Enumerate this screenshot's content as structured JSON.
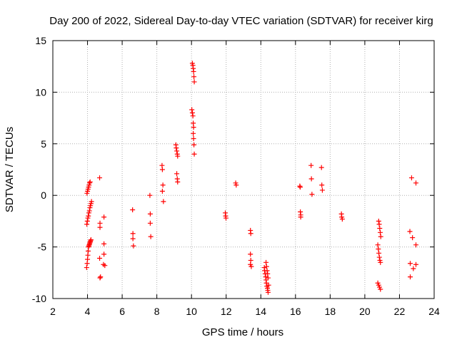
{
  "chart_data": {
    "type": "scatter",
    "title": "Day 200 of 2022, Sidereal Day-to-day VTEC variation (SDTVAR) for receiver kirg",
    "xlabel": "GPS time / hours",
    "ylabel": "SDTVAR / TECUs",
    "xlim": [
      2,
      24
    ],
    "ylim": [
      -10,
      15
    ],
    "xticks": [
      2,
      4,
      6,
      8,
      10,
      12,
      14,
      16,
      18,
      20,
      22,
      24
    ],
    "yticks": [
      -10,
      -5,
      0,
      5,
      10,
      15
    ],
    "xtick_labels": [
      "2",
      "4",
      "6",
      "8",
      "10",
      "12",
      "14",
      "16",
      "18",
      "20",
      "22",
      "24"
    ],
    "ytick_labels": [
      "-10",
      "-5",
      "0",
      "5",
      "10",
      "15"
    ],
    "grid": true,
    "marker": "+",
    "marker_color": "#ff0000",
    "series": [
      {
        "name": "SDTVAR",
        "points": [
          [
            3.95,
            -7.0
          ],
          [
            3.98,
            -6.6
          ],
          [
            4.0,
            -6.2
          ],
          [
            4.02,
            -5.8
          ],
          [
            4.04,
            -5.4
          ],
          [
            4.06,
            -5.0
          ],
          [
            4.08,
            -4.9
          ],
          [
            4.1,
            -4.8
          ],
          [
            4.12,
            -4.7
          ],
          [
            4.14,
            -4.6
          ],
          [
            4.16,
            -4.5
          ],
          [
            4.18,
            -4.4
          ],
          [
            4.2,
            -4.3
          ],
          [
            3.96,
            -2.8
          ],
          [
            3.99,
            -2.5
          ],
          [
            4.02,
            -2.2
          ],
          [
            4.05,
            -2.0
          ],
          [
            4.08,
            -1.7
          ],
          [
            4.11,
            -1.5
          ],
          [
            4.14,
            -1.2
          ],
          [
            4.17,
            -1.0
          ],
          [
            4.2,
            -0.8
          ],
          [
            4.23,
            -0.6
          ],
          [
            3.97,
            0.2
          ],
          [
            4.0,
            0.4
          ],
          [
            4.03,
            0.6
          ],
          [
            4.06,
            0.8
          ],
          [
            4.09,
            1.0
          ],
          [
            4.12,
            1.2
          ],
          [
            4.15,
            1.3
          ],
          [
            4.7,
            1.7
          ],
          [
            4.72,
            -2.7
          ],
          [
            4.72,
            -3.1
          ],
          [
            4.7,
            -6.1
          ],
          [
            4.72,
            -8.0
          ],
          [
            4.75,
            -7.9
          ],
          [
            4.95,
            -2.1
          ],
          [
            4.95,
            -4.7
          ],
          [
            4.95,
            -5.7
          ],
          [
            5.0,
            -6.8
          ],
          [
            4.92,
            -6.7
          ],
          [
            6.6,
            -1.4
          ],
          [
            6.62,
            -3.7
          ],
          [
            6.62,
            -4.2
          ],
          [
            6.65,
            -4.9
          ],
          [
            7.6,
            0.0
          ],
          [
            7.62,
            -1.8
          ],
          [
            7.62,
            -2.7
          ],
          [
            7.65,
            -4.0
          ],
          [
            8.3,
            2.9
          ],
          [
            8.32,
            2.5
          ],
          [
            8.35,
            1.0
          ],
          [
            8.32,
            0.4
          ],
          [
            8.38,
            -0.6
          ],
          [
            9.1,
            4.9
          ],
          [
            9.12,
            4.6
          ],
          [
            9.15,
            4.3
          ],
          [
            9.18,
            4.0
          ],
          [
            9.2,
            3.8
          ],
          [
            9.15,
            2.1
          ],
          [
            9.18,
            1.6
          ],
          [
            9.2,
            1.3
          ],
          [
            10.05,
            12.8
          ],
          [
            10.08,
            12.6
          ],
          [
            10.1,
            12.3
          ],
          [
            10.12,
            12.0
          ],
          [
            10.14,
            11.5
          ],
          [
            10.16,
            11.0
          ],
          [
            10.02,
            8.3
          ],
          [
            10.05,
            8.0
          ],
          [
            10.08,
            7.7
          ],
          [
            10.1,
            7.0
          ],
          [
            10.12,
            6.6
          ],
          [
            10.1,
            6.0
          ],
          [
            10.12,
            5.5
          ],
          [
            10.14,
            4.9
          ],
          [
            10.16,
            4.0
          ],
          [
            11.95,
            -1.7
          ],
          [
            11.97,
            -2.0
          ],
          [
            11.99,
            -2.2
          ],
          [
            12.55,
            1.2
          ],
          [
            12.58,
            1.0
          ],
          [
            13.4,
            -3.4
          ],
          [
            13.42,
            -3.7
          ],
          [
            13.4,
            -5.7
          ],
          [
            13.42,
            -6.3
          ],
          [
            13.4,
            -6.7
          ],
          [
            13.45,
            -6.9
          ],
          [
            14.2,
            -7.0
          ],
          [
            14.22,
            -7.3
          ],
          [
            14.25,
            -7.6
          ],
          [
            14.28,
            -7.9
          ],
          [
            14.3,
            -8.2
          ],
          [
            14.32,
            -8.5
          ],
          [
            14.35,
            -8.8
          ],
          [
            14.38,
            -9.0
          ],
          [
            14.4,
            -9.2
          ],
          [
            14.42,
            -9.4
          ],
          [
            14.3,
            -6.5
          ],
          [
            14.33,
            -6.9
          ],
          [
            14.36,
            -7.3
          ],
          [
            14.39,
            -7.6
          ],
          [
            14.42,
            -8.0
          ],
          [
            14.45,
            -8.7
          ],
          [
            16.25,
            0.9
          ],
          [
            16.27,
            0.8
          ],
          [
            16.28,
            -1.6
          ],
          [
            16.3,
            -1.9
          ],
          [
            16.3,
            -2.1
          ],
          [
            16.9,
            2.9
          ],
          [
            16.92,
            1.6
          ],
          [
            16.95,
            0.1
          ],
          [
            17.5,
            2.7
          ],
          [
            17.52,
            1.0
          ],
          [
            17.55,
            0.5
          ],
          [
            18.65,
            -1.8
          ],
          [
            18.67,
            -2.1
          ],
          [
            18.7,
            -2.3
          ],
          [
            20.8,
            -2.5
          ],
          [
            20.83,
            -2.8
          ],
          [
            20.86,
            -3.2
          ],
          [
            20.89,
            -3.6
          ],
          [
            20.92,
            -4.0
          ],
          [
            20.75,
            -4.8
          ],
          [
            20.78,
            -5.2
          ],
          [
            20.81,
            -5.6
          ],
          [
            20.84,
            -6.0
          ],
          [
            20.87,
            -6.3
          ],
          [
            20.9,
            -6.5
          ],
          [
            20.75,
            -8.5
          ],
          [
            20.8,
            -8.7
          ],
          [
            20.85,
            -8.9
          ],
          [
            20.9,
            -9.1
          ],
          [
            22.6,
            -3.5
          ],
          [
            22.62,
            -6.6
          ],
          [
            22.62,
            -7.9
          ],
          [
            22.7,
            1.7
          ],
          [
            22.75,
            -4.1
          ],
          [
            22.8,
            -7.1
          ],
          [
            22.95,
            1.2
          ],
          [
            22.95,
            -4.8
          ],
          [
            22.95,
            -6.7
          ]
        ]
      }
    ]
  }
}
